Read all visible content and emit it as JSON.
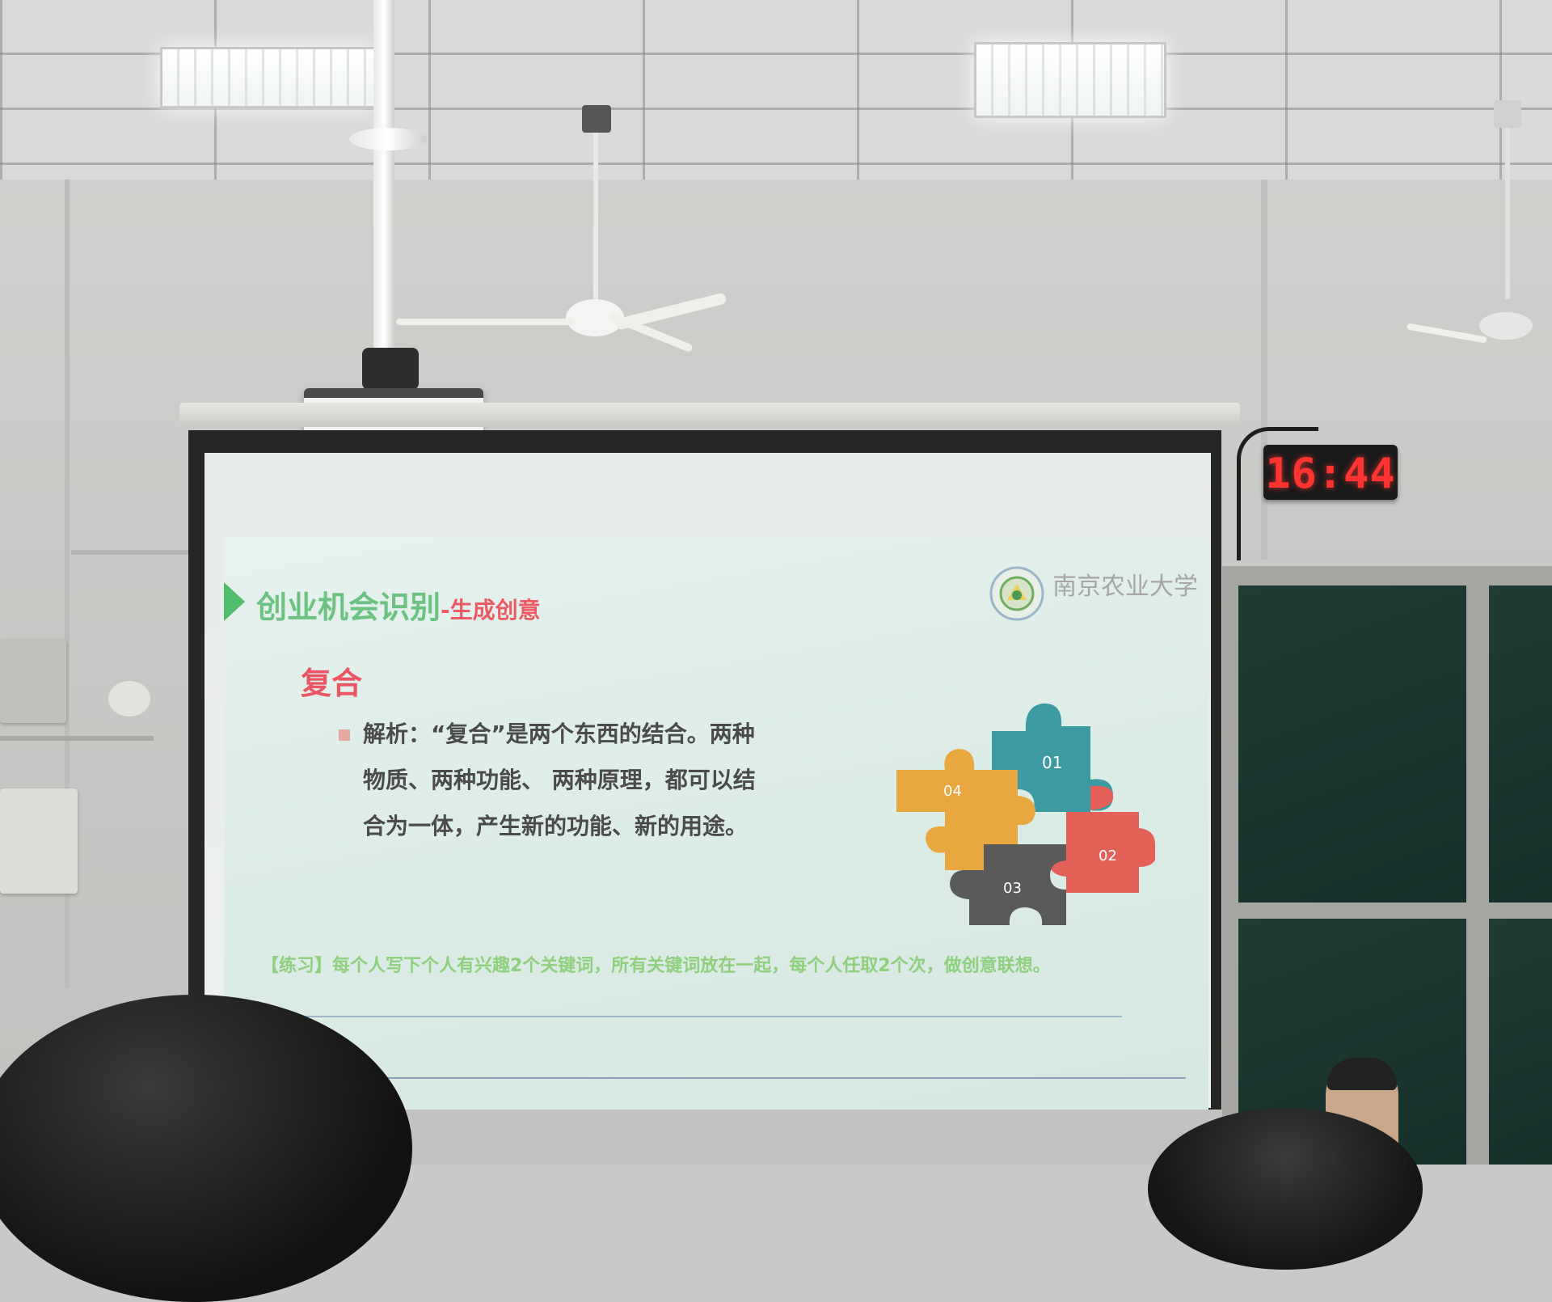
{
  "slide": {
    "title_main": "创业机会识别",
    "title_sub": "-生成创意",
    "heading": "复合",
    "body_lines": [
      "解析：“复合”是两个东西的结合。两种",
      "物质、两种功能、 两种原理，都可以结",
      "合为一体，产生新的功能、新的用途。"
    ],
    "exercise": "【练习】每个人写下个人有兴趣2个关键词，所有关键词放在一起，每个人任取2个次，做创意联想。",
    "logo_text": "南京农业大学",
    "puzzle_labels": [
      "01",
      "02",
      "03",
      "04"
    ],
    "puzzle_colors": [
      "#3d9aa3",
      "#e4615a",
      "#5a5a5a",
      "#e9a83f"
    ]
  },
  "clock": {
    "time": "16:44"
  }
}
